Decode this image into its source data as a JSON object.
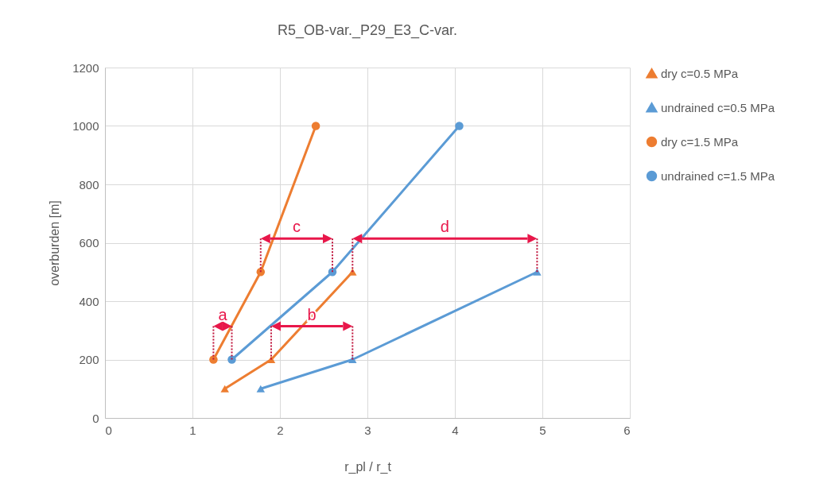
{
  "chart_data": {
    "type": "line",
    "title": "R5_OB-var._P29_E3_C-var.",
    "xlabel": "r_pl / r_t",
    "ylabel": "overburden [m]",
    "xlim": [
      0,
      6
    ],
    "xticks": [
      0,
      1,
      2,
      3,
      4,
      5,
      6
    ],
    "ylim": [
      0,
      1200
    ],
    "yticks": [
      0,
      200,
      400,
      600,
      800,
      1000,
      1200
    ],
    "grid": true,
    "legend": "right",
    "line_style": "solid",
    "series": [
      {
        "name": "dry c=0.5 MPa",
        "color": "#ed7d31",
        "marker": "triangle",
        "x": [
          1.37,
          1.9,
          2.83
        ],
        "values": [
          100,
          200,
          500
        ]
      },
      {
        "name": "undrained c=0.5 MPa",
        "color": "#5b9bd5",
        "marker": "triangle",
        "x": [
          1.78,
          2.83,
          4.94
        ],
        "values": [
          100,
          200,
          500
        ]
      },
      {
        "name": "dry c=1.5 MPa",
        "color": "#ed7d31",
        "marker": "circle",
        "x": [
          1.24,
          1.78,
          2.41
        ],
        "values": [
          200,
          500,
          1000
        ]
      },
      {
        "name": "undrained c=1.5 MPa",
        "color": "#5b9bd5",
        "marker": "circle",
        "x": [
          1.45,
          2.6,
          4.05
        ],
        "values": [
          200,
          500,
          1000
        ]
      }
    ],
    "annotations": [
      {
        "text": "a",
        "x": 1.24,
        "y": 200
      },
      "b",
      "c",
      "d"
    ]
  }
}
